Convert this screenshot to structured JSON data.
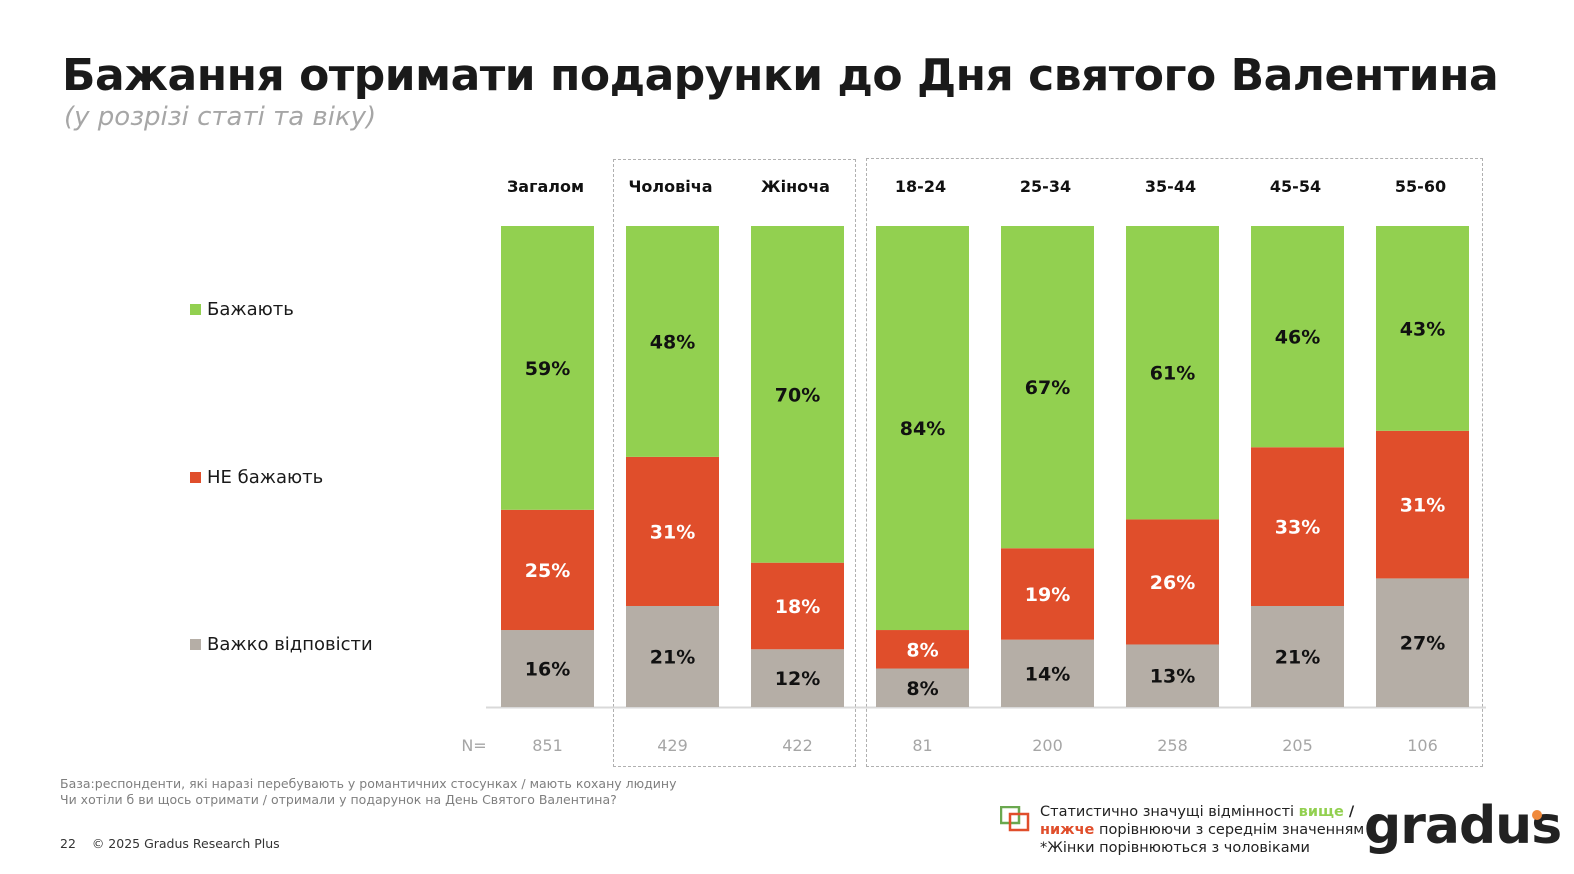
{
  "title": "Бажання отримати подарунки до Дня святого Валентина",
  "subtitle": "(у розрізі статі та віку)",
  "legend": [
    {
      "label": "Бажають",
      "color": "#92d050"
    },
    {
      "label": "НЕ бажають",
      "color": "#e04e2b"
    },
    {
      "label": "Важко відповісти",
      "color": "#b5aea6"
    }
  ],
  "chart_data": {
    "type": "bar",
    "stacked": true,
    "categories": [
      "Загалом",
      "Чоловіча",
      "Жіноча",
      "18-24",
      "25-34",
      "35-44",
      "45-54",
      "55-60"
    ],
    "series": [
      {
        "name": "Бажають",
        "color": "#92d050",
        "values": [
          59,
          48,
          70,
          84,
          67,
          61,
          46,
          43
        ]
      },
      {
        "name": "НЕ бажають",
        "color": "#e04e2b",
        "values": [
          25,
          31,
          18,
          8,
          19,
          26,
          33,
          31
        ]
      },
      {
        "name": "Важко відповісти",
        "color": "#b5aea6",
        "values": [
          16,
          21,
          12,
          8,
          14,
          13,
          21,
          27
        ]
      }
    ],
    "value_labels": [
      [
        "59%",
        "48%",
        "70%",
        "84%",
        "67%",
        "61%",
        "46%",
        "43%"
      ],
      [
        "25%",
        "31%",
        "18%",
        "8%",
        "19%",
        "26%",
        "33%",
        "31%"
      ],
      [
        "16%",
        "21%",
        "12%",
        "8%",
        "14%",
        "13%",
        "21%",
        "27%"
      ]
    ],
    "n_label": "N=",
    "n": [
      "851",
      "429",
      "422",
      "81",
      "200",
      "258",
      "205",
      "106"
    ],
    "ylim": [
      0,
      100
    ],
    "legend_position": "left"
  },
  "base_note": "База:респонденти, які наразі перебувають у романтичних стосунках / мають кохану людину",
  "question": "Чи хотіли б ви щось отримати / отримали у подарунок на День Святого Валентина?",
  "page_number": "22",
  "copyright": "© 2025 Gradus Research Plus",
  "significance": {
    "line1": "Статистично значущі відмінності ",
    "higher": "вище",
    "slash": " /",
    "lower": "нижче",
    "line2": " порівнюючи з середнім значенням",
    "line3": "*Жінки порівнюються з чоловіками",
    "higher_color": "#92d050",
    "lower_color": "#e04e2b"
  },
  "logo": "gradus"
}
